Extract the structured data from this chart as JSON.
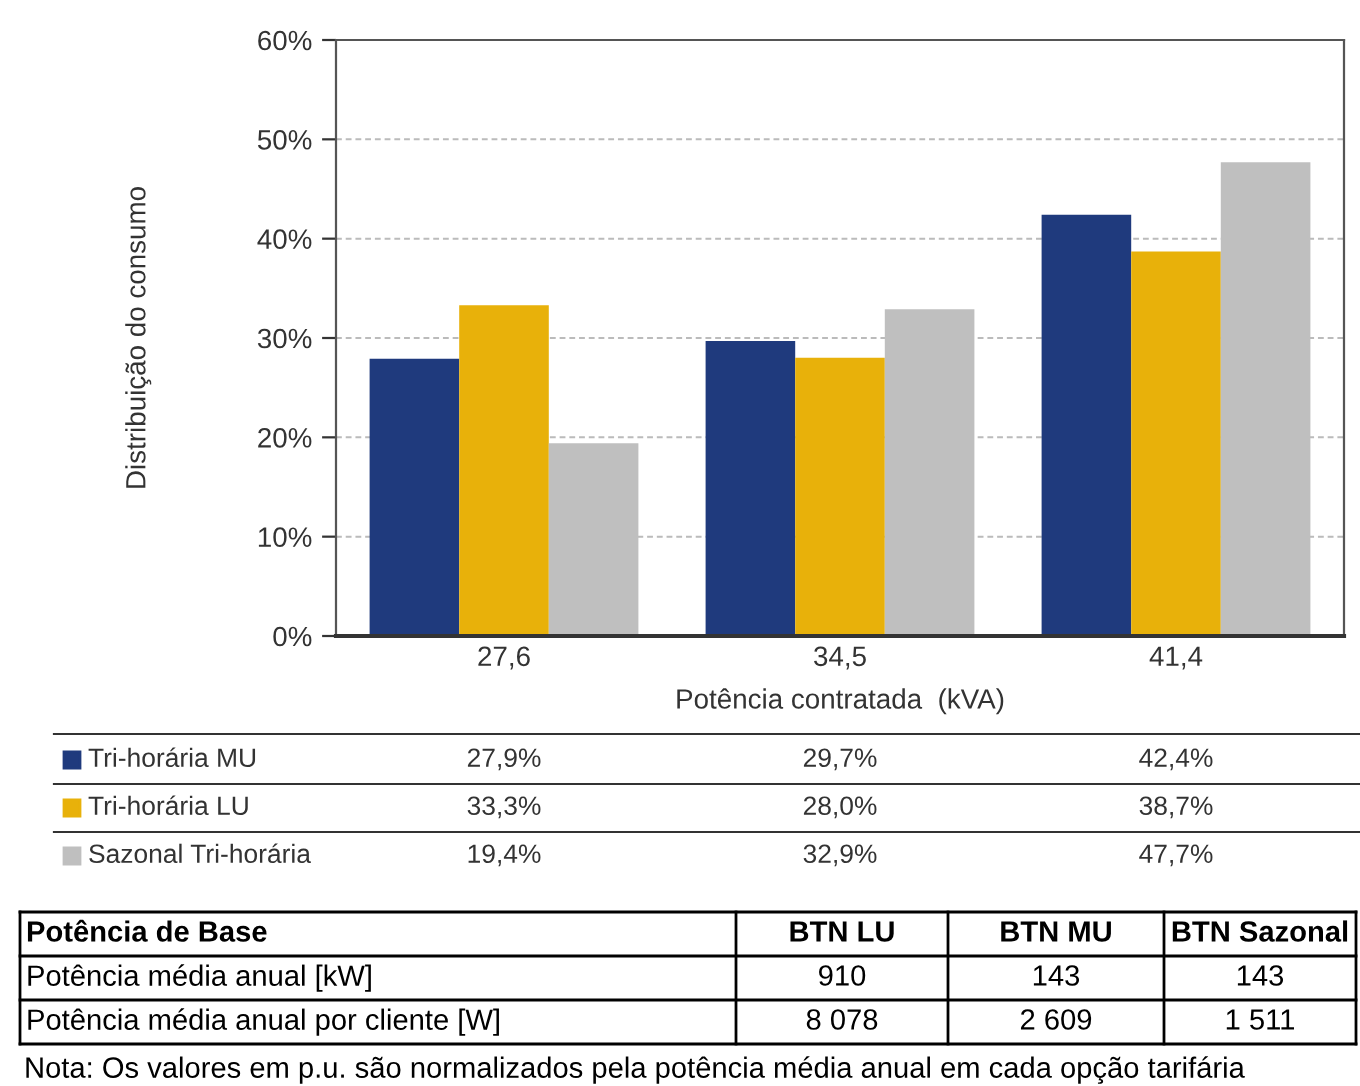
{
  "chart_data": [
    {
      "type": "bar",
      "xlabel": "Potência contratada  (kVA)",
      "ylabel": "Distribuição do consumo",
      "categories": [
        "27,6",
        "34,5",
        "41,4"
      ],
      "series": [
        {
          "name": "Tri-horária MU",
          "color": "#1f3a7d",
          "values": [
            27.9,
            29.7,
            42.4
          ],
          "value_labels": [
            "27,9%",
            "29,7%",
            "42,4%"
          ]
        },
        {
          "name": "Tri-horária LU",
          "color": "#e8b10a",
          "values": [
            33.3,
            28.0,
            38.7
          ],
          "value_labels": [
            "33,3%",
            "28,0%",
            "38,7%"
          ]
        },
        {
          "name": "Sazonal Tri-horária",
          "color": "#bfbfbf",
          "values": [
            19.4,
            32.9,
            47.7
          ],
          "value_labels": [
            "19,4%",
            "32,9%",
            "47,7%"
          ]
        }
      ],
      "ylim": [
        0,
        60
      ],
      "yticks": [
        {
          "value": 0,
          "label": "0%"
        },
        {
          "value": 10,
          "label": "10%"
        },
        {
          "value": 20,
          "label": "20%"
        },
        {
          "value": 30,
          "label": "30%"
        },
        {
          "value": 40,
          "label": "40%"
        },
        {
          "value": 50,
          "label": "50%"
        },
        {
          "value": 60,
          "label": "60%"
        }
      ],
      "grid": "y",
      "legend": "bottom left"
    },
    {
      "type": "other",
      "title": "Potência de Base",
      "categories": [
        "BTN LU",
        "BTN MU",
        "BTN Sazonal"
      ],
      "y_categories": [
        "Potência média anual [kW]",
        "Potência média anual por cliente [W]"
      ],
      "cell_labels": [
        [
          "910",
          "143",
          "143"
        ],
        [
          "8 078",
          "2 609",
          "1 511"
        ]
      ],
      "annotations": [
        "Nota: Os valores em p.u. são normalizados pela potência média anual em cada opção tarifária"
      ]
    }
  ]
}
